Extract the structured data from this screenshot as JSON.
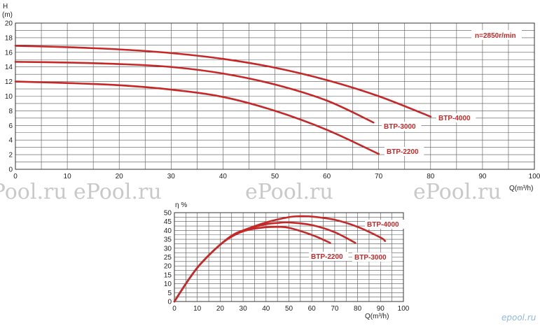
{
  "chart_data": [
    {
      "type": "line",
      "name": "head-chart",
      "ylabel_top": "H",
      "ylabel_unit": "(m)",
      "xlabel": "Q(m³/h)",
      "xlim": [
        0,
        100
      ],
      "ylim": [
        0,
        20
      ],
      "xticks": [
        0,
        10,
        20,
        30,
        40,
        50,
        60,
        70,
        80,
        90,
        100
      ],
      "yticks": [
        0,
        2,
        4,
        6,
        8,
        10,
        12,
        14,
        16,
        18,
        20
      ],
      "grid": true,
      "annotation": "n=2850r/min",
      "series": [
        {
          "name": "BTP-4000",
          "x": [
            0,
            10,
            20,
            30,
            40,
            50,
            60,
            70,
            80
          ],
          "y": [
            16.9,
            16.7,
            16.4,
            15.9,
            15.1,
            13.9,
            12.2,
            10.0,
            7.2
          ]
        },
        {
          "name": "BTP-3000",
          "x": [
            0,
            10,
            20,
            30,
            40,
            50,
            60,
            69
          ],
          "y": [
            14.7,
            14.6,
            14.4,
            14.0,
            13.1,
            11.6,
            9.4,
            6.4
          ]
        },
        {
          "name": "BTP-2200",
          "x": [
            0,
            10,
            20,
            30,
            40,
            50,
            60,
            70
          ],
          "y": [
            12.0,
            11.8,
            11.5,
            10.9,
            9.9,
            8.0,
            5.4,
            2.1
          ]
        }
      ]
    },
    {
      "type": "line",
      "name": "efficiency-chart",
      "ylabel_top": "η %",
      "xlabel": "Q(m³/h)",
      "xlim": [
        0,
        100
      ],
      "ylim": [
        0,
        50
      ],
      "xticks": [
        0,
        10,
        20,
        30,
        40,
        50,
        60,
        70,
        80,
        90,
        100
      ],
      "yticks": [
        0,
        5,
        10,
        15,
        20,
        25,
        30,
        35,
        40,
        45,
        50
      ],
      "grid": true,
      "series": [
        {
          "name": "BTP-4000",
          "x": [
            0,
            5,
            10,
            15,
            20,
            25,
            30,
            40,
            50,
            55,
            60,
            70,
            80,
            90,
            92
          ],
          "y": [
            0,
            10,
            19,
            26,
            32,
            37,
            40,
            44.5,
            47.5,
            48,
            47.8,
            46,
            42,
            36,
            34
          ]
        },
        {
          "name": "BTP-3000",
          "x": [
            0,
            5,
            10,
            15,
            20,
            25,
            30,
            40,
            45,
            50,
            60,
            70,
            79
          ],
          "y": [
            0,
            10,
            19,
            26,
            32,
            37,
            40,
            43.5,
            44.2,
            44.5,
            43,
            39,
            33
          ]
        },
        {
          "name": "BTP-2200",
          "x": [
            0,
            5,
            10,
            15,
            20,
            25,
            30,
            35,
            40,
            45,
            50,
            60,
            68
          ],
          "y": [
            0,
            10,
            19,
            26,
            32,
            36.5,
            39.5,
            41,
            41.8,
            42,
            41.5,
            37.5,
            33
          ]
        }
      ]
    }
  ],
  "watermarks": [
    "ePool.ru",
    "ePool.ru",
    "ePool.ru",
    "ePool.ru",
    "ePool.ru"
  ],
  "logo": "epool.ru"
}
